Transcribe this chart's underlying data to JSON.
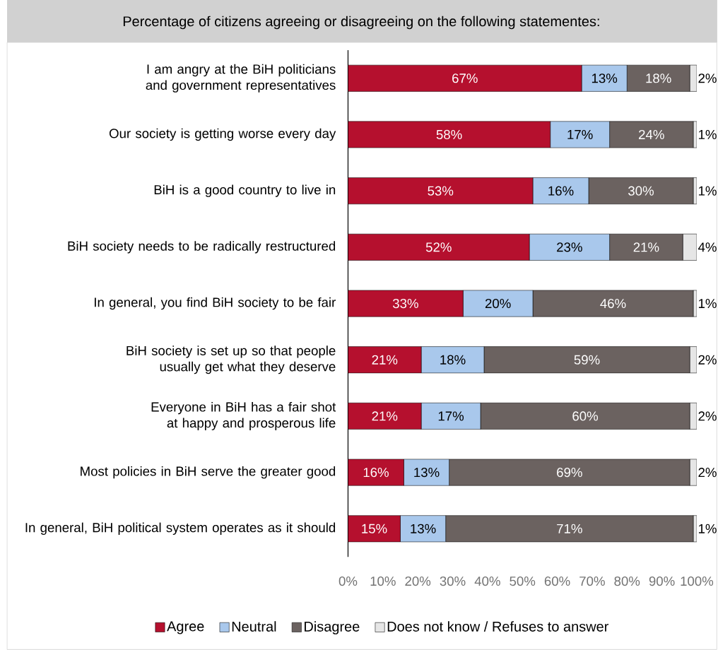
{
  "chart_data": {
    "type": "bar",
    "orientation": "horizontal",
    "stacked": true,
    "title": "Percentage of citizens agreeing or disagreeing on the following statementes:",
    "categories": [
      "I am angry at the BiH politicians and government representatives",
      "Our society is getting worse every day",
      "BiH is a good country to live in",
      "BiH society needs to be radically restructured",
      "In general, you find BiH society to be fair",
      "BiH society is set up so that people usually get what they deserve",
      "Everyone in BiH has a fair shot at happy and prosperous life",
      "Most policies in BiH serve the greater good",
      "In general, BiH political system operates as it should"
    ],
    "series": [
      {
        "name": "Agree",
        "color": "#b5102e",
        "values": [
          67,
          58,
          53,
          52,
          33,
          21,
          21,
          16,
          15
        ],
        "value_labels": [
          "67%",
          "58%",
          "53%",
          "52%",
          "33%",
          "21%",
          "21%",
          "16%",
          "15%"
        ]
      },
      {
        "name": "Neutral",
        "color": "#a9c8ec",
        "values": [
          13,
          17,
          16,
          23,
          20,
          18,
          17,
          13,
          13
        ],
        "value_labels": [
          "13%",
          "17%",
          "16%",
          "23%",
          "20%",
          "18%",
          "17%",
          "13%",
          "13%"
        ]
      },
      {
        "name": "Disagree",
        "color": "#6b6260",
        "values": [
          18,
          24,
          30,
          21,
          46,
          59,
          60,
          69,
          71
        ],
        "value_labels": [
          "18%",
          "24%",
          "30%",
          "21%",
          "46%",
          "59%",
          "60%",
          "69%",
          "71%"
        ]
      },
      {
        "name": "Does not know / Refuses to answer",
        "color": "#e6e6e6",
        "values": [
          2,
          1,
          1,
          4,
          1,
          2,
          2,
          2,
          1
        ],
        "value_labels": [
          "2%",
          "1%",
          "1%",
          "4%",
          "1%",
          "2%",
          "2%",
          "2%",
          "1%"
        ]
      }
    ],
    "xlim": [
      0,
      100
    ],
    "xticks": [
      {
        "value": 0,
        "label": "0%"
      },
      {
        "value": 10,
        "label": "10%"
      },
      {
        "value": 20,
        "label": "20%"
      },
      {
        "value": 30,
        "label": "30%"
      },
      {
        "value": 40,
        "label": "40%"
      },
      {
        "value": 50,
        "label": "50%"
      },
      {
        "value": 60,
        "label": "60%"
      },
      {
        "value": 70,
        "label": "70%"
      },
      {
        "value": 80,
        "label": "80%"
      },
      {
        "value": 90,
        "label": "90%"
      },
      {
        "value": 100,
        "label": "100%"
      }
    ],
    "legend": "bottom",
    "grid": false
  }
}
